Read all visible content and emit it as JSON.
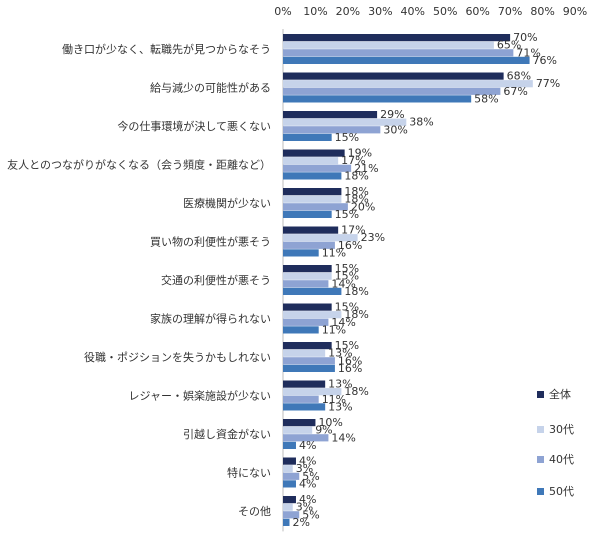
{
  "chart_data": {
    "type": "bar",
    "orientation": "horizontal",
    "title": "",
    "xlabel": "",
    "ylabel": "",
    "xlim": [
      0,
      90
    ],
    "x_ticks": [
      "0%",
      "10%",
      "20%",
      "30%",
      "40%",
      "50%",
      "60%",
      "70%",
      "80%",
      "90%"
    ],
    "grid": false,
    "legend_position": "right",
    "categories": [
      "働き口が少なく、転職先が見つからなそう",
      "給与減少の可能性がある",
      "今の仕事環境が決して悪くない",
      "友人とのつながりがなくなる（会う頻度・距離など）",
      "医療機関が少ない",
      "買い物の利便性が悪そう",
      "交通の利便性が悪そう",
      "家族の理解が得られない",
      "役職・ポジションを失うかもしれない",
      "レジャー・娯楽施設が少ない",
      "引越し資金がない",
      "特にない",
      "その他"
    ],
    "series": [
      {
        "name": "全体",
        "color": "#1f2d5c",
        "values": [
          70,
          68,
          29,
          19,
          18,
          17,
          15,
          15,
          15,
          13,
          10,
          4,
          4
        ]
      },
      {
        "name": "30代",
        "color": "#c6d3ea",
        "values": [
          65,
          77,
          38,
          17,
          18,
          23,
          15,
          18,
          13,
          18,
          9,
          3,
          3
        ]
      },
      {
        "name": "40代",
        "color": "#8ea3d3",
        "values": [
          71,
          67,
          30,
          21,
          20,
          16,
          14,
          14,
          16,
          11,
          14,
          5,
          5
        ]
      },
      {
        "name": "50代",
        "color": "#3f78b8",
        "values": [
          76,
          58,
          15,
          18,
          15,
          11,
          18,
          11,
          16,
          13,
          4,
          4,
          2
        ]
      }
    ],
    "value_suffix": "%"
  }
}
